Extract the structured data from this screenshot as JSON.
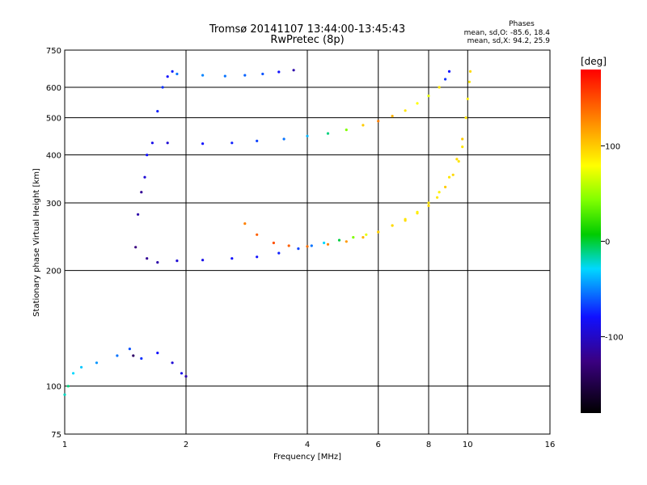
{
  "chart_data": {
    "type": "scatter",
    "title": "Tromsø 20141107 13:44:00-13:45:43",
    "subtitle": "RwPretec (8p)",
    "xlabel": "Frequency [MHz]",
    "ylabel": "Stationary phase Virtual Height [km]",
    "x_scale": "log",
    "y_scale": "log",
    "xlim": [
      1,
      16
    ],
    "ylim": [
      75,
      750
    ],
    "x_ticks": [
      1,
      2,
      4,
      6,
      8,
      10,
      16
    ],
    "y_ticks": [
      75,
      100,
      200,
      300,
      400,
      500,
      600,
      750
    ],
    "grid": true,
    "stats": {
      "heading": "Phases",
      "line_o": "mean, sd,O: -85.6, 18.4",
      "line_x": "mean, sd,X:  94.2, 25.9"
    },
    "colorbar": {
      "label": "[deg]",
      "ticks": [
        100,
        0,
        -100
      ],
      "range": [
        -180,
        180
      ]
    },
    "series": [
      {
        "points": [
          [
            1.48,
            120
          ],
          [
            1.5,
            230
          ],
          [
            1.52,
            280
          ],
          [
            1.55,
            320
          ],
          [
            1.58,
            350
          ],
          [
            1.6,
            400
          ],
          [
            1.65,
            430
          ],
          [
            1.7,
            520
          ],
          [
            1.75,
            600
          ],
          [
            1.8,
            640
          ],
          [
            1.85,
            660
          ],
          [
            1.6,
            215
          ],
          [
            1.7,
            210
          ],
          [
            1.9,
            212
          ],
          [
            2.2,
            213
          ],
          [
            2.6,
            215
          ],
          [
            3.0,
            217
          ],
          [
            3.4,
            222
          ],
          [
            3.8,
            228
          ],
          [
            4.1,
            232
          ],
          [
            4.4,
            236
          ],
          [
            4.8,
            240
          ],
          [
            5.2,
            244
          ],
          [
            5.6,
            248
          ],
          [
            6.0,
            252
          ],
          [
            6.5,
            262
          ],
          [
            7.0,
            270
          ],
          [
            7.5,
            282
          ],
          [
            8.0,
            295
          ],
          [
            8.4,
            310
          ],
          [
            8.8,
            330
          ],
          [
            9.2,
            355
          ],
          [
            9.5,
            385
          ],
          [
            9.7,
            420
          ],
          [
            2.8,
            265
          ],
          [
            3.0,
            248
          ],
          [
            3.3,
            236
          ],
          [
            3.6,
            232
          ],
          [
            4.0,
            231
          ],
          [
            4.5,
            234
          ],
          [
            5.0,
            238
          ],
          [
            5.5,
            244
          ],
          [
            6.0,
            252
          ],
          [
            6.5,
            262
          ],
          [
            7.0,
            272
          ],
          [
            7.5,
            284
          ],
          [
            8.0,
            300
          ],
          [
            8.5,
            320
          ],
          [
            9.0,
            350
          ],
          [
            9.4,
            390
          ],
          [
            9.7,
            440
          ],
          [
            9.9,
            500
          ],
          [
            10.0,
            560
          ],
          [
            10.1,
            620
          ],
          [
            10.15,
            660
          ],
          [
            1.8,
            430
          ],
          [
            2.2,
            428
          ],
          [
            2.6,
            430
          ],
          [
            3.0,
            435
          ],
          [
            3.5,
            440
          ],
          [
            4.0,
            448
          ],
          [
            4.5,
            455
          ],
          [
            5.0,
            465
          ],
          [
            5.5,
            478
          ],
          [
            6.0,
            490
          ],
          [
            6.5,
            505
          ],
          [
            7.0,
            522
          ],
          [
            7.5,
            545
          ],
          [
            8.0,
            570
          ],
          [
            8.5,
            600
          ],
          [
            8.8,
            630
          ],
          [
            9.0,
            660
          ],
          [
            1.9,
            650
          ],
          [
            2.2,
            645
          ],
          [
            2.5,
            642
          ],
          [
            2.8,
            645
          ],
          [
            3.1,
            650
          ],
          [
            3.4,
            658
          ],
          [
            3.7,
            665
          ],
          [
            1.02,
            100
          ],
          [
            1.05,
            108
          ],
          [
            1.1,
            112
          ],
          [
            1.2,
            115
          ],
          [
            1.35,
            120
          ],
          [
            1.45,
            125
          ],
          [
            1.55,
            118
          ],
          [
            1.7,
            122
          ],
          [
            1.85,
            115
          ],
          [
            1.95,
            108
          ],
          [
            2.0,
            106
          ],
          [
            1.0,
            95
          ]
        ],
        "phases": [
          -140,
          -130,
          -120,
          -125,
          -110,
          -100,
          -105,
          -95,
          -90,
          -100,
          -95,
          -125,
          -120,
          -110,
          -105,
          -100,
          -100,
          -95,
          -85,
          -70,
          -40,
          -10,
          40,
          80,
          90,
          100,
          105,
          100,
          105,
          100,
          110,
          105,
          100,
          100,
          140,
          150,
          155,
          150,
          145,
          140,
          130,
          120,
          110,
          105,
          100,
          95,
          100,
          95,
          100,
          105,
          110,
          100,
          95,
          100,
          105,
          -110,
          -100,
          -95,
          -85,
          -70,
          -50,
          -20,
          40,
          110,
          140,
          120,
          100,
          90,
          80,
          100,
          -90,
          -100,
          -70,
          -65,
          -70,
          -75,
          -80,
          -100,
          -120,
          -20,
          -40,
          -45,
          -60,
          -70,
          -80,
          -90,
          -100,
          -110,
          -105,
          -120,
          -30
        ]
      }
    ]
  }
}
